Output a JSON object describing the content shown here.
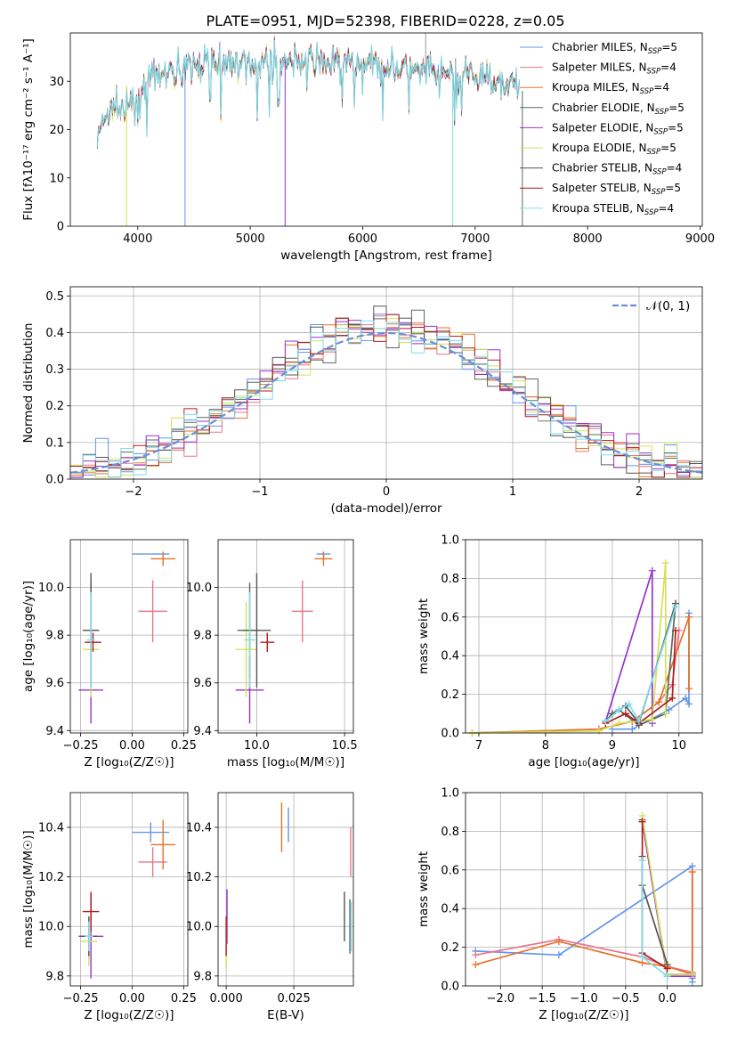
{
  "title": "PLATE=0951, MJD=52398, FIBERID=0228, z=0.05",
  "colors": {
    "Chabrier MILES": "#6495ed",
    "Salpeter MILES": "#e7778b",
    "Kroupa MILES": "#e8722a",
    "Chabrier ELODIE": "#5a6b5a",
    "Salpeter ELODIE": "#9932cc",
    "Kroupa ELODIE": "#d4e157",
    "Chabrier STELIB": "#555555",
    "Salpeter STELIB": "#b21d1d",
    "Kroupa STELIB": "#80deea"
  },
  "chart_data": [
    {
      "type": "line",
      "id": "spectrum",
      "xlabel": "wavelength [Angstrom, rest frame]",
      "ylabel": "Flux [fλ10⁻¹⁷ erg cm⁻² s⁻¹ A⁻¹]",
      "xlim": [
        3400,
        9020
      ],
      "ylim": [
        0,
        40
      ],
      "xticks": [
        4000,
        5000,
        6000,
        7000,
        8000,
        9000
      ],
      "yticks": [
        0,
        10,
        20,
        30
      ],
      "grid": false,
      "legend_position": "top-right",
      "legend": [
        {
          "key": "Chabrier MILES",
          "pre": "Chabrier MILES, N",
          "sub": "SSP",
          "post": "=5"
        },
        {
          "key": "Salpeter MILES",
          "pre": "Salpeter MILES, N",
          "sub": "SSP",
          "post": "=4"
        },
        {
          "key": "Kroupa MILES",
          "pre": "Kroupa MILES, N",
          "sub": "SSP",
          "post": "=4"
        },
        {
          "key": "Chabrier ELODIE",
          "pre": "Chabrier ELODIE, N",
          "sub": "SSP",
          "post": "=5"
        },
        {
          "key": "Salpeter ELODIE",
          "pre": "Salpeter ELODIE, N",
          "sub": "SSP",
          "post": "=5"
        },
        {
          "key": "Kroupa ELODIE",
          "pre": "Kroupa ELODIE, N",
          "sub": "SSP",
          "post": "=5"
        },
        {
          "key": "Chabrier STELIB",
          "pre": "Chabrier STELIB, N",
          "sub": "SSP",
          "post": "=4"
        },
        {
          "key": "Salpeter STELIB",
          "pre": "Salpeter STELIB, N",
          "sub": "SSP",
          "post": "=5"
        },
        {
          "key": "Kroupa STELIB",
          "pre": "Kroupa STELIB, N",
          "sub": "SSP",
          "post": "=4"
        }
      ],
      "continuum": [
        [
          3640,
          18
        ],
        [
          3700,
          22
        ],
        [
          3800,
          25
        ],
        [
          3900,
          24
        ],
        [
          4000,
          27
        ],
        [
          4100,
          30
        ],
        [
          4300,
          32
        ],
        [
          4600,
          34
        ],
        [
          5000,
          34
        ],
        [
          5500,
          34.5
        ],
        [
          6000,
          33.5
        ],
        [
          6500,
          32
        ],
        [
          7000,
          31
        ],
        [
          7200,
          30.5
        ],
        [
          7400,
          29
        ]
      ],
      "spikes_down": [
        [
          3900,
          0
        ],
        [
          4420,
          0
        ],
        [
          5310,
          0
        ],
        [
          6800,
          0
        ],
        [
          7420,
          0
        ]
      ],
      "spikes_up": [
        [
          6560,
          40
        ]
      ]
    },
    {
      "type": "step",
      "id": "residuals",
      "xlabel": "(data-model)/error",
      "ylabel": "Normed distribution",
      "xlim": [
        -2.5,
        2.5
      ],
      "ylim": [
        0,
        0.525
      ],
      "xticks": [
        -2,
        -1,
        0,
        1,
        2
      ],
      "yticks": [
        0.0,
        0.1,
        0.2,
        0.3,
        0.4,
        0.5
      ],
      "grid": true,
      "bin_width": 0.1,
      "reference_label": "𝒩(0, 1)",
      "reference_color": "#6a8fd8",
      "legend_position": "top-right"
    },
    {
      "type": "errorbar",
      "id": "z-age",
      "xlabel": "Z [log₁₀(Z/Z☉)]",
      "ylabel": "age  [log₁₀(age/yr)]",
      "xlim": [
        -0.3,
        0.27
      ],
      "ylim": [
        9.39,
        10.2
      ],
      "xticks": [
        -0.25,
        0.0,
        0.25
      ],
      "yticks": [
        9.4,
        9.6,
        9.8,
        10.0
      ],
      "grid": true,
      "points": [
        {
          "key": "Chabrier MILES",
          "x": 0.09,
          "xerr": 0.09,
          "y": 10.14,
          "yerr": 0.0
        },
        {
          "key": "Salpeter MILES",
          "x": 0.1,
          "xerr": 0.07,
          "y": 9.9,
          "yerr": 0.13
        },
        {
          "key": "Kroupa MILES",
          "x": 0.15,
          "xerr": 0.06,
          "y": 10.12,
          "yerr": 0.03
        },
        {
          "key": "Chabrier ELODIE",
          "x": -0.2,
          "xerr": 0.04,
          "y": 9.82,
          "yerr": 0.2
        },
        {
          "key": "Salpeter ELODIE",
          "x": -0.2,
          "xerr": 0.06,
          "y": 9.57,
          "yerr": 0.14
        },
        {
          "key": "Kroupa ELODIE",
          "x": -0.2,
          "xerr": 0.04,
          "y": 9.74,
          "yerr": 0.2
        },
        {
          "key": "Chabrier STELIB",
          "x": -0.2,
          "xerr": 0.04,
          "y": 9.82,
          "yerr": 0.24
        },
        {
          "key": "Salpeter STELIB",
          "x": -0.19,
          "xerr": 0.04,
          "y": 9.77,
          "yerr": 0.04
        },
        {
          "key": "Kroupa STELIB",
          "x": -0.2,
          "xerr": 0.02,
          "y": 9.78,
          "yerr": 0.2
        }
      ]
    },
    {
      "type": "errorbar",
      "id": "mass-age",
      "xlabel": "mass [log₁₀(M/M☉)]",
      "ylabel": "",
      "xlim": [
        9.78,
        10.55
      ],
      "ylim": [
        9.39,
        10.2
      ],
      "xticks": [
        10.0,
        10.5
      ],
      "yticks": [
        9.4,
        9.6,
        9.8,
        10.0
      ],
      "grid": true,
      "points": [
        {
          "key": "Chabrier MILES",
          "x": 10.38,
          "xerr": 0.04,
          "y": 10.14,
          "yerr": 0.01
        },
        {
          "key": "Salpeter MILES",
          "x": 10.26,
          "xerr": 0.06,
          "y": 9.9,
          "yerr": 0.13
        },
        {
          "key": "Kroupa MILES",
          "x": 10.38,
          "xerr": 0.05,
          "y": 10.12,
          "yerr": 0.03
        },
        {
          "key": "Chabrier ELODIE",
          "x": 9.96,
          "xerr": 0.07,
          "y": 9.82,
          "yerr": 0.2
        },
        {
          "key": "Salpeter ELODIE",
          "x": 9.96,
          "xerr": 0.08,
          "y": 9.57,
          "yerr": 0.14
        },
        {
          "key": "Kroupa ELODIE",
          "x": 9.94,
          "xerr": 0.06,
          "y": 9.74,
          "yerr": 0.2
        },
        {
          "key": "Chabrier STELIB",
          "x": 10.0,
          "xerr": 0.08,
          "y": 9.82,
          "yerr": 0.24
        },
        {
          "key": "Salpeter STELIB",
          "x": 10.06,
          "xerr": 0.04,
          "y": 9.77,
          "yerr": 0.04
        },
        {
          "key": "Kroupa STELIB",
          "x": 9.96,
          "xerr": 0.03,
          "y": 9.78,
          "yerr": 0.2
        }
      ]
    },
    {
      "type": "line",
      "id": "age-weight",
      "xlabel": "age  [log₁₀(age/yr)]",
      "ylabel": "mass weight",
      "xlim": [
        6.8,
        10.35
      ],
      "ylim": [
        0,
        1.0
      ],
      "xticks": [
        7,
        8,
        9,
        10
      ],
      "yticks": [
        0.0,
        0.2,
        0.4,
        0.6,
        0.8,
        1.0
      ],
      "grid": true,
      "series": [
        {
          "key": "Chabrier MILES",
          "points": [
            [
              9.0,
              0.02
            ],
            [
              9.3,
              0.02
            ],
            [
              9.85,
              0.12
            ],
            [
              10.1,
              0.18
            ],
            [
              10.15,
              0.15
            ],
            [
              10.15,
              0.62
            ]
          ]
        },
        {
          "key": "Salpeter MILES",
          "points": [
            [
              6.9,
              0.0
            ],
            [
              8.8,
              0.02
            ],
            [
              9.3,
              0.06
            ],
            [
              9.7,
              0.16
            ],
            [
              9.9,
              0.25
            ],
            [
              10.0,
              0.53
            ]
          ]
        },
        {
          "key": "Kroupa MILES",
          "points": [
            [
              6.9,
              0.0
            ],
            [
              8.8,
              0.02
            ],
            [
              9.3,
              0.06
            ],
            [
              9.7,
              0.16
            ],
            [
              10.15,
              0.6
            ],
            [
              10.15,
              0.23
            ]
          ]
        },
        {
          "key": "Chabrier ELODIE",
          "points": [
            [
              8.9,
              0.06
            ],
            [
              9.1,
              0.12
            ],
            [
              9.4,
              0.04
            ],
            [
              9.8,
              0.1
            ],
            [
              9.95,
              0.67
            ]
          ]
        },
        {
          "key": "Salpeter ELODIE",
          "points": [
            [
              8.9,
              0.06
            ],
            [
              9.6,
              0.84
            ],
            [
              9.6,
              0.05
            ]
          ]
        },
        {
          "key": "Kroupa ELODIE",
          "points": [
            [
              6.9,
              0.0
            ],
            [
              8.8,
              0.01
            ],
            [
              9.1,
              0.05
            ],
            [
              9.6,
              0.07
            ],
            [
              9.8,
              0.88
            ],
            [
              9.8,
              0.1
            ]
          ]
        },
        {
          "key": "Chabrier STELIB",
          "points": [
            [
              8.9,
              0.06
            ],
            [
              9.0,
              0.1
            ],
            [
              9.2,
              0.14
            ],
            [
              9.4,
              0.05
            ],
            [
              9.95,
              0.67
            ]
          ]
        },
        {
          "key": "Salpeter STELIB",
          "points": [
            [
              8.9,
              0.05
            ],
            [
              9.2,
              0.1
            ],
            [
              9.4,
              0.05
            ],
            [
              9.9,
              0.18
            ],
            [
              9.95,
              0.53
            ]
          ]
        },
        {
          "key": "Kroupa STELIB",
          "points": [
            [
              8.9,
              0.06
            ],
            [
              9.1,
              0.12
            ],
            [
              9.25,
              0.15
            ],
            [
              9.4,
              0.06
            ],
            [
              9.95,
              0.65
            ]
          ]
        }
      ]
    },
    {
      "type": "errorbar",
      "id": "z-mass",
      "xlabel": "Z [log₁₀(Z/Z☉)]",
      "ylabel": "mass [log₁₀(M/M☉)]",
      "xlim": [
        -0.3,
        0.27
      ],
      "ylim": [
        9.76,
        10.54
      ],
      "xticks": [
        -0.25,
        0.0,
        0.25
      ],
      "yticks": [
        9.8,
        10.0,
        10.2,
        10.4
      ],
      "grid": true,
      "points": [
        {
          "key": "Chabrier MILES",
          "x": 0.09,
          "xerr": 0.09,
          "y": 10.38,
          "yerr": 0.04
        },
        {
          "key": "Salpeter MILES",
          "x": 0.1,
          "xerr": 0.07,
          "y": 10.26,
          "yerr": 0.06
        },
        {
          "key": "Kroupa MILES",
          "x": 0.15,
          "xerr": 0.06,
          "y": 10.33,
          "yerr": 0.1
        },
        {
          "key": "Chabrier ELODIE",
          "x": -0.21,
          "xerr": 0.04,
          "y": 9.96,
          "yerr": 0.08
        },
        {
          "key": "Salpeter ELODIE",
          "x": -0.2,
          "xerr": 0.06,
          "y": 9.96,
          "yerr": 0.17
        },
        {
          "key": "Kroupa ELODIE",
          "x": -0.21,
          "xerr": 0.04,
          "y": 9.94,
          "yerr": 0.1
        },
        {
          "key": "Chabrier STELIB",
          "x": -0.21,
          "xerr": 0.04,
          "y": 9.96,
          "yerr": 0.08
        },
        {
          "key": "Salpeter STELIB",
          "x": -0.2,
          "xerr": 0.04,
          "y": 10.06,
          "yerr": 0.08
        },
        {
          "key": "Kroupa STELIB",
          "x": -0.21,
          "xerr": 0.02,
          "y": 9.96,
          "yerr": 0.06
        }
      ]
    },
    {
      "type": "errorbar",
      "id": "ebv-mass",
      "xlabel": "E(B-V)",
      "ylabel": "",
      "xlim": [
        -0.003,
        0.047
      ],
      "ylim": [
        9.76,
        10.54
      ],
      "xticks": [
        0.0,
        0.025
      ],
      "xtick_labels": [
        "0.000",
        "0.025"
      ],
      "yticks": [
        9.8,
        10.0,
        10.2,
        10.4
      ],
      "grid": true,
      "points": [
        {
          "key": "Chabrier MILES",
          "x": 0.023,
          "xerr": 0,
          "y": 10.41,
          "yerr": 0.07
        },
        {
          "key": "Salpeter MILES",
          "x": 0.046,
          "xerr": 0,
          "y": 10.3,
          "yerr": 0.1
        },
        {
          "key": "Kroupa MILES",
          "x": 0.0205,
          "xerr": 0,
          "y": 10.4,
          "yerr": 0.1
        },
        {
          "key": "Chabrier ELODIE",
          "x": 0.0457,
          "xerr": 0,
          "y": 10.0,
          "yerr": 0.11
        },
        {
          "key": "Salpeter ELODIE",
          "x": 0.0003,
          "xerr": 0,
          "y": 10.04,
          "yerr": 0.11
        },
        {
          "key": "Kroupa ELODIE",
          "x": 0.0,
          "xerr": 0,
          "y": 9.93,
          "yerr": 0.1
        },
        {
          "key": "Chabrier STELIB",
          "x": 0.0437,
          "xerr": 0,
          "y": 10.04,
          "yerr": 0.1
        },
        {
          "key": "Salpeter STELIB",
          "x": 0.0,
          "xerr": 0,
          "y": 9.96,
          "yerr": 0.08
        },
        {
          "key": "Kroupa STELIB",
          "x": 0.0462,
          "xerr": 0,
          "y": 10.0,
          "yerr": 0.1
        }
      ]
    },
    {
      "type": "line",
      "id": "z-weight",
      "xlabel": "Z [log₁₀(Z/Z☉)]",
      "ylabel": "mass weight",
      "xlim": [
        -2.42,
        0.42
      ],
      "ylim": [
        0,
        1.0
      ],
      "xticks": [
        -2.0,
        -1.5,
        -1.0,
        -0.5,
        0.0
      ],
      "yticks": [
        0.0,
        0.2,
        0.4,
        0.6,
        0.8,
        1.0
      ],
      "grid": true,
      "series": [
        {
          "key": "Chabrier MILES",
          "points": [
            [
              -2.3,
              0.18
            ],
            [
              -1.3,
              0.16
            ],
            [
              0.3,
              0.62
            ],
            [
              0.3,
              0.04
            ],
            [
              0.3,
              0.02
            ]
          ]
        },
        {
          "key": "Salpeter MILES",
          "points": [
            [
              -2.3,
              0.16
            ],
            [
              -1.3,
              0.24
            ],
            [
              -0.3,
              0.15
            ],
            [
              0.0,
              0.1
            ],
            [
              0.3,
              0.07
            ],
            [
              0.3,
              0.59
            ]
          ]
        },
        {
          "key": "Kroupa MILES",
          "points": [
            [
              -2.3,
              0.11
            ],
            [
              -1.3,
              0.23
            ],
            [
              -0.3,
              0.12
            ],
            [
              0.0,
              0.1
            ],
            [
              0.3,
              0.06
            ],
            [
              0.3,
              0.59
            ]
          ]
        },
        {
          "key": "Chabrier ELODIE",
          "points": [
            [
              -0.3,
              0.86
            ],
            [
              0.0,
              0.06
            ],
            [
              0.3,
              0.06
            ]
          ]
        },
        {
          "key": "Salpeter ELODIE",
          "points": [
            [
              -0.3,
              0.85
            ],
            [
              0.0,
              0.05
            ],
            [
              0.3,
              0.05
            ]
          ]
        },
        {
          "key": "Kroupa ELODIE",
          "points": [
            [
              -0.3,
              0.88
            ],
            [
              0.0,
              0.06
            ],
            [
              0.3,
              0.06
            ]
          ]
        },
        {
          "key": "Chabrier STELIB",
          "points": [
            [
              -0.3,
              0.67
            ],
            [
              -0.3,
              0.52
            ],
            [
              0.0,
              0.11
            ]
          ]
        },
        {
          "key": "Salpeter STELIB",
          "points": [
            [
              -0.3,
              0.85
            ],
            [
              -0.3,
              0.17
            ],
            [
              0.0,
              0.09
            ]
          ]
        },
        {
          "key": "Kroupa STELIB",
          "points": [
            [
              -0.3,
              0.65
            ],
            [
              -0.3,
              0.15
            ],
            [
              0.0,
              0.05
            ]
          ]
        }
      ]
    }
  ]
}
